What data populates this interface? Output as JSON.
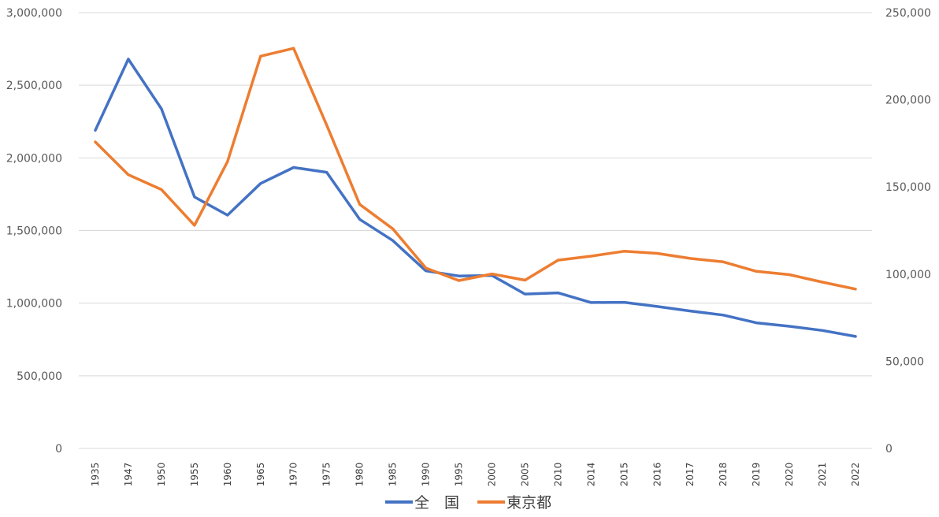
{
  "chart_data": {
    "type": "line",
    "x": [
      "1935",
      "1947",
      "1950",
      "1955",
      "1960",
      "1965",
      "1970",
      "1975",
      "1980",
      "1985",
      "1990",
      "1995",
      "2000",
      "2005",
      "2010",
      "2014",
      "2015",
      "2016",
      "2017",
      "2018",
      "2019",
      "2020",
      "2021",
      "2022"
    ],
    "series": [
      {
        "name": "全　国",
        "axis": "left",
        "color": "#4472C4",
        "values": [
          2190000,
          2680000,
          2338000,
          1731000,
          1606000,
          1824000,
          1934000,
          1901000,
          1577000,
          1431000,
          1222000,
          1187000,
          1191000,
          1063000,
          1071000,
          1004000,
          1006000,
          977000,
          946000,
          918000,
          865000,
          841000,
          812000,
          771000
        ]
      },
      {
        "name": "東京都",
        "axis": "right",
        "color": "#ED7D31",
        "values": [
          175800,
          157000,
          148500,
          128000,
          164500,
          225000,
          229500,
          185500,
          140000,
          126000,
          103500,
          96300,
          100100,
          96500,
          108000,
          110300,
          113100,
          111900,
          109000,
          107000,
          101600,
          99700,
          95400,
          91400
        ]
      }
    ],
    "yleft": {
      "min": 0,
      "max": 3000000,
      "step": 500000,
      "ticks": [
        "0",
        "500,000",
        "1,000,000",
        "1,500,000",
        "2,000,000",
        "2,500,000",
        "3,000,000"
      ]
    },
    "yright": {
      "min": 0,
      "max": 250000,
      "step": 50000,
      "ticks": [
        "0",
        "50,000",
        "100,000",
        "150,000",
        "200,000",
        "250,000"
      ]
    },
    "grid": true,
    "legend": "bottom-center",
    "legend_entries": [
      "全　国",
      "東京都"
    ]
  }
}
